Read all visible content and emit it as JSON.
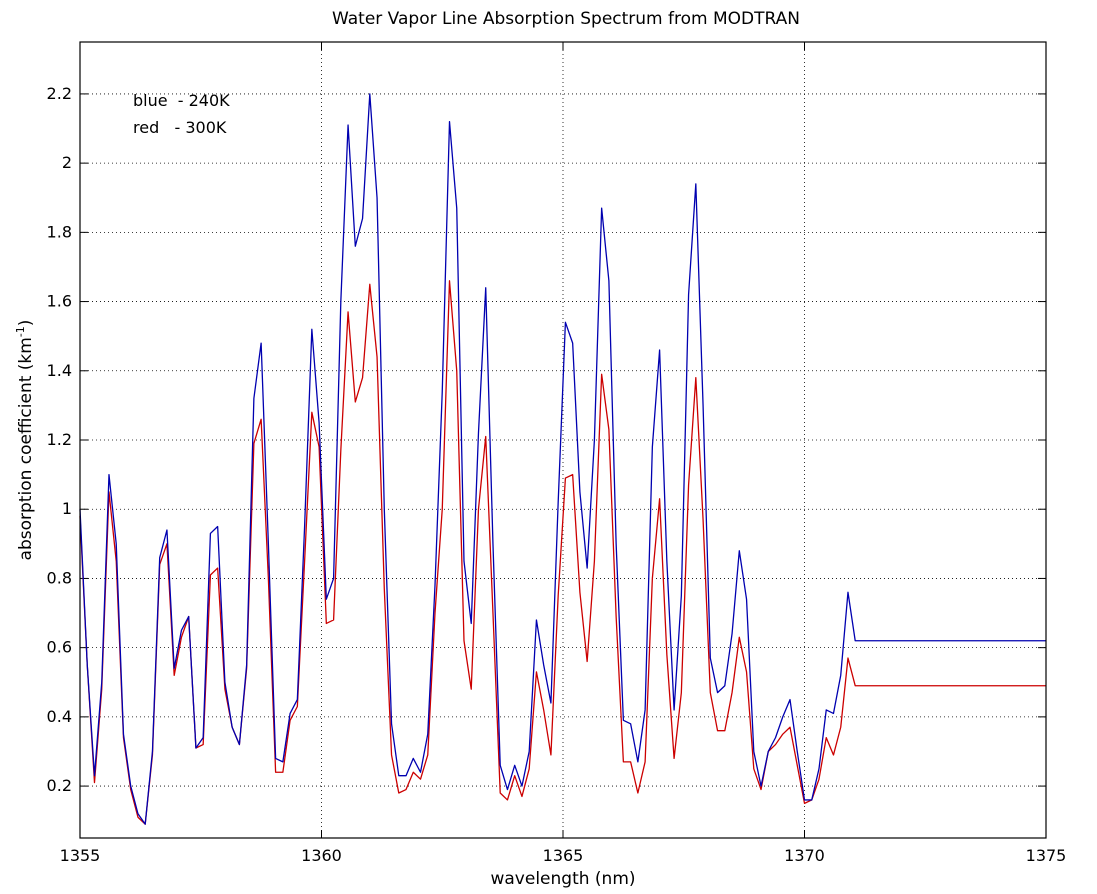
{
  "chart_data": {
    "type": "line",
    "title": "Water Vapor Line Absorption Spectrum from MODTRAN",
    "xlabel": "wavelength (nm)",
    "ylabel": "absorption coefficient (km",
    "ylabel_superscript": "-1",
    "ylabel_suffix": ")",
    "xlim": [
      1355,
      1375
    ],
    "ylim": [
      0.05,
      2.35
    ],
    "xticks": [
      1355,
      1360,
      1365,
      1370,
      1375
    ],
    "xtick_labels": [
      "1355",
      "1360",
      "1365",
      "1370",
      "1375"
    ],
    "yticks": [
      0.2,
      0.4,
      0.6,
      0.8,
      1.0,
      1.2,
      1.4,
      1.6,
      1.8,
      2.0,
      2.2
    ],
    "ytick_labels": [
      "0.2",
      "0.4",
      "0.6",
      "0.8",
      "1",
      "1.2",
      "1.4",
      "1.6",
      "1.8",
      "2",
      "2.2"
    ],
    "grid": true,
    "annotations": [
      "blue  - 240K",
      "red   - 300K"
    ],
    "x": [
      1355.0,
      1355.15,
      1355.3,
      1355.45,
      1355.6,
      1355.75,
      1355.9,
      1356.05,
      1356.2,
      1356.35,
      1356.5,
      1356.65,
      1356.8,
      1356.95,
      1357.1,
      1357.25,
      1357.4,
      1357.55,
      1357.7,
      1357.85,
      1358.0,
      1358.15,
      1358.3,
      1358.45,
      1358.6,
      1358.75,
      1358.9,
      1359.05,
      1359.2,
      1359.35,
      1359.5,
      1359.65,
      1359.8,
      1359.95,
      1360.1,
      1360.25,
      1360.4,
      1360.55,
      1360.7,
      1360.85,
      1361.0,
      1361.15,
      1361.3,
      1361.45,
      1361.6,
      1361.75,
      1361.9,
      1362.05,
      1362.2,
      1362.35,
      1362.5,
      1362.65,
      1362.8,
      1362.95,
      1363.1,
      1363.25,
      1363.4,
      1363.55,
      1363.7,
      1363.85,
      1364.0,
      1364.15,
      1364.3,
      1364.45,
      1364.6,
      1364.75,
      1364.9,
      1365.05,
      1365.2,
      1365.35,
      1365.5,
      1365.65,
      1365.8,
      1365.95,
      1366.1,
      1366.25,
      1366.4,
      1366.55,
      1366.7,
      1366.85,
      1367.0,
      1367.15,
      1367.3,
      1367.45,
      1367.6,
      1367.75,
      1367.9,
      1368.05,
      1368.2,
      1368.35,
      1368.5,
      1368.65,
      1368.8,
      1368.95,
      1369.1,
      1369.25,
      1369.4,
      1369.55,
      1369.7,
      1369.85,
      1370.0,
      1370.15,
      1370.3,
      1370.45,
      1370.6,
      1370.75,
      1370.9,
      1371.05,
      1371.2,
      1371.35,
      1371.5,
      1371.65,
      1371.8,
      1371.95,
      1372.1,
      1372.25,
      1372.4,
      1372.55,
      1372.7,
      1372.85,
      1373.0,
      1373.15,
      1373.3,
      1373.45,
      1373.6,
      1373.75,
      1373.9,
      1374.05,
      1374.2,
      1374.35,
      1374.5,
      1374.65,
      1374.8,
      1374.95,
      1375.0
    ],
    "series": [
      {
        "color": "#0000b0",
        "values": [
          1.0,
          0.55,
          0.23,
          0.5,
          1.1,
          0.9,
          0.35,
          0.2,
          0.12,
          0.09,
          0.3,
          0.86,
          0.94,
          0.54,
          0.65,
          0.69,
          0.31,
          0.34,
          0.93,
          0.95,
          0.5,
          0.37,
          0.32,
          0.55,
          1.32,
          1.48,
          0.9,
          0.28,
          0.27,
          0.41,
          0.45,
          0.95,
          1.52,
          1.25,
          0.74,
          0.8,
          1.6,
          2.11,
          1.76,
          1.84,
          2.2,
          1.9,
          1.0,
          0.38,
          0.23,
          0.23,
          0.28,
          0.24,
          0.35,
          0.78,
          1.34,
          2.12,
          1.87,
          0.85,
          0.67,
          1.22,
          1.64,
          0.9,
          0.26,
          0.19,
          0.26,
          0.2,
          0.3,
          0.68,
          0.55,
          0.44,
          1.02,
          1.54,
          1.48,
          1.05,
          0.83,
          1.2,
          1.87,
          1.66,
          0.9,
          0.39,
          0.38,
          0.27,
          0.42,
          1.18,
          1.46,
          0.85,
          0.42,
          0.75,
          1.62,
          1.94,
          1.3,
          0.57,
          0.47,
          0.49,
          0.64,
          0.88,
          0.74,
          0.3,
          0.2,
          0.3,
          0.34,
          0.4,
          0.45,
          0.3,
          0.16,
          0.16,
          0.25,
          0.42,
          0.41,
          0.52,
          0.76,
          0.62,
          0.62,
          0.62,
          0.62,
          0.62,
          0.62,
          0.62,
          0.62,
          0.62,
          0.62,
          0.62,
          0.62,
          0.62,
          0.62,
          0.62,
          0.62,
          0.62,
          0.62,
          0.62,
          0.62,
          0.62,
          0.62,
          0.62,
          0.62,
          0.62,
          0.62,
          0.62,
          0.62
        ]
      },
      {
        "color": "#cc0000",
        "values": [
          0.98,
          0.55,
          0.21,
          0.48,
          1.05,
          0.85,
          0.34,
          0.19,
          0.11,
          0.09,
          0.29,
          0.84,
          0.9,
          0.52,
          0.63,
          0.69,
          0.31,
          0.32,
          0.81,
          0.83,
          0.48,
          0.37,
          0.32,
          0.54,
          1.19,
          1.26,
          0.8,
          0.24,
          0.24,
          0.39,
          0.43,
          0.85,
          1.28,
          1.18,
          0.67,
          0.68,
          1.17,
          1.57,
          1.31,
          1.38,
          1.65,
          1.44,
          0.77,
          0.29,
          0.18,
          0.19,
          0.24,
          0.22,
          0.29,
          0.7,
          1.0,
          1.66,
          1.4,
          0.62,
          0.48,
          1.0,
          1.21,
          0.7,
          0.18,
          0.16,
          0.23,
          0.17,
          0.25,
          0.53,
          0.42,
          0.29,
          0.75,
          1.09,
          1.1,
          0.76,
          0.56,
          0.85,
          1.39,
          1.23,
          0.69,
          0.27,
          0.27,
          0.18,
          0.27,
          0.8,
          1.03,
          0.58,
          0.28,
          0.47,
          1.07,
          1.38,
          0.97,
          0.47,
          0.36,
          0.36,
          0.47,
          0.63,
          0.53,
          0.25,
          0.19,
          0.3,
          0.32,
          0.35,
          0.37,
          0.26,
          0.15,
          0.16,
          0.22,
          0.34,
          0.29,
          0.37,
          0.57,
          0.49,
          0.49,
          0.49,
          0.49,
          0.49,
          0.49,
          0.49,
          0.49,
          0.49,
          0.49,
          0.49,
          0.49,
          0.49,
          0.49,
          0.49,
          0.49,
          0.49,
          0.49,
          0.49,
          0.49,
          0.49,
          0.49,
          0.49,
          0.49,
          0.49,
          0.49,
          0.49,
          0.49
        ]
      }
    ]
  }
}
